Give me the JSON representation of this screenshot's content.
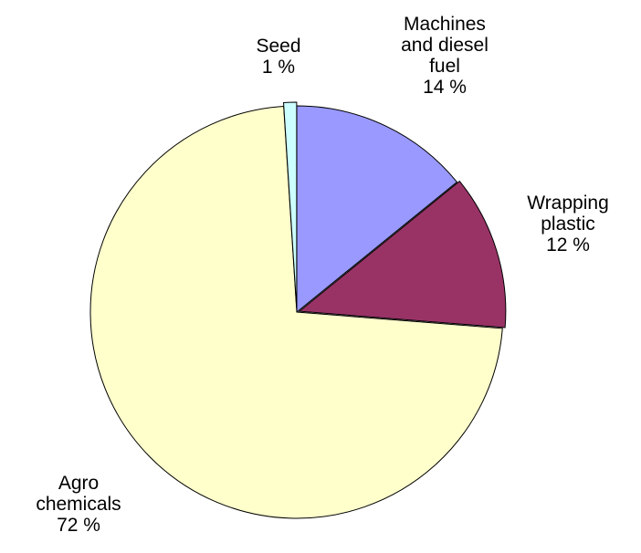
{
  "chart_data": {
    "type": "pie",
    "slices": [
      {
        "label_lines": [
          "Machines",
          "and diesel",
          "fuel"
        ],
        "value_text": "14 %",
        "value": 14,
        "color": "#9999ff"
      },
      {
        "label_lines": [
          "Wrapping",
          "plastic"
        ],
        "value_text": "12 %",
        "value": 12,
        "color": "#993366"
      },
      {
        "label_lines": [
          "Agro",
          "chemicals"
        ],
        "value_text": "72 %",
        "value": 72,
        "color": "#ffffcc"
      },
      {
        "label_lines": [
          "Seed"
        ],
        "value_text": "1 %",
        "value": 1,
        "color": "#ccffff"
      }
    ]
  }
}
